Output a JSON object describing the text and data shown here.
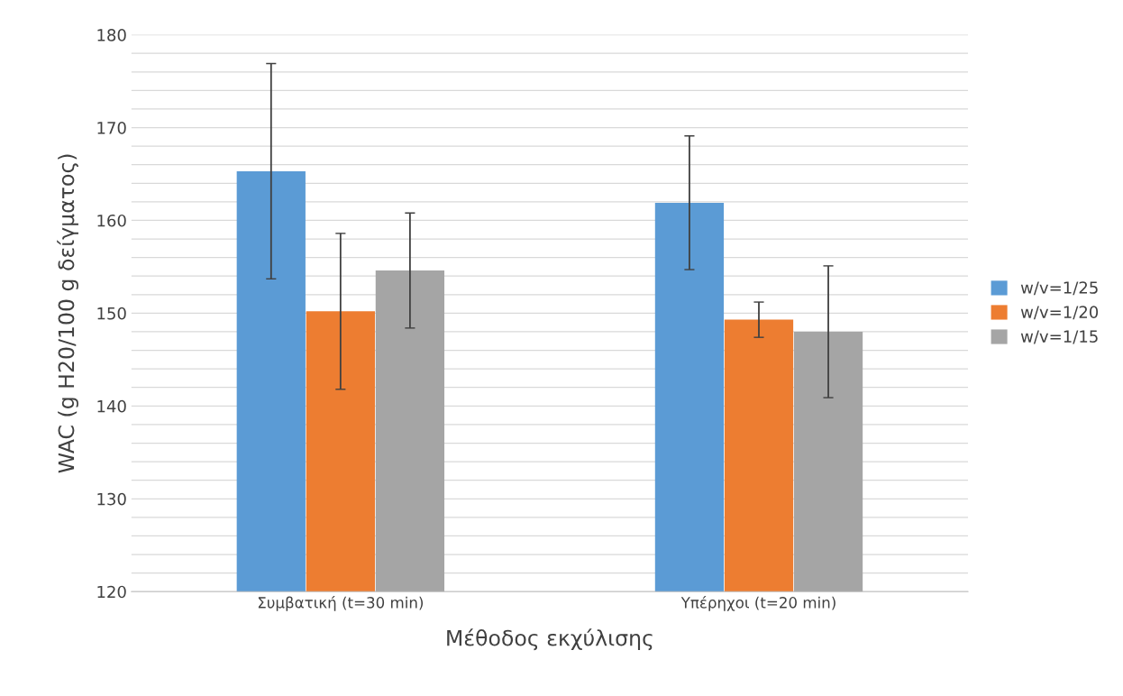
{
  "chart_data": {
    "type": "bar",
    "xlabel": "Μέθοδος εκχύλισης",
    "ylabel": "WAC (g H20/100 g δείγματος)",
    "categories": [
      "Συμβατική (t=30 min)",
      "Υπέρηχοι (t=20 min)"
    ],
    "series": [
      {
        "name": "w/v=1/25",
        "color": "#5b9bd5",
        "values": [
          165.3,
          161.9
        ],
        "errors": [
          11.6,
          7.2
        ]
      },
      {
        "name": "w/v=1/20",
        "color": "#ed7d31",
        "values": [
          150.2,
          149.3
        ],
        "errors": [
          8.4,
          1.9
        ]
      },
      {
        "name": "w/v=1/15",
        "color": "#a5a5a5",
        "values": [
          154.6,
          148.0
        ],
        "errors": [
          6.2,
          7.1
        ]
      }
    ],
    "ylim": [
      120,
      180
    ],
    "yticks": [
      120,
      {
        "value": 122,
        "label": null
      },
      {
        "value": 124,
        "label": null
      },
      {
        "value": 126,
        "label": null
      },
      {
        "value": 128,
        "label": null
      },
      130,
      {
        "value": 132,
        "label": null
      },
      {
        "value": 134,
        "label": null
      },
      {
        "value": 136,
        "label": null
      },
      {
        "value": 138,
        "label": null
      },
      140,
      {
        "value": 142,
        "label": null
      },
      {
        "value": 144,
        "label": null
      },
      {
        "value": 146,
        "label": null
      },
      {
        "value": 148,
        "label": null
      },
      150,
      {
        "value": 152,
        "label": null
      },
      {
        "value": 154,
        "label": null
      },
      {
        "value": 156,
        "label": null
      },
      {
        "value": 158,
        "label": null
      },
      160,
      {
        "value": 162,
        "label": null
      },
      {
        "value": 164,
        "label": null
      },
      {
        "value": 166,
        "label": null
      },
      {
        "value": 168,
        "label": null
      },
      170,
      {
        "value": 172,
        "label": null
      },
      {
        "value": 174,
        "label": null
      },
      {
        "value": 176,
        "label": null
      },
      {
        "value": 178,
        "label": null
      },
      180
    ],
    "grid": "y",
    "legend": "right"
  }
}
